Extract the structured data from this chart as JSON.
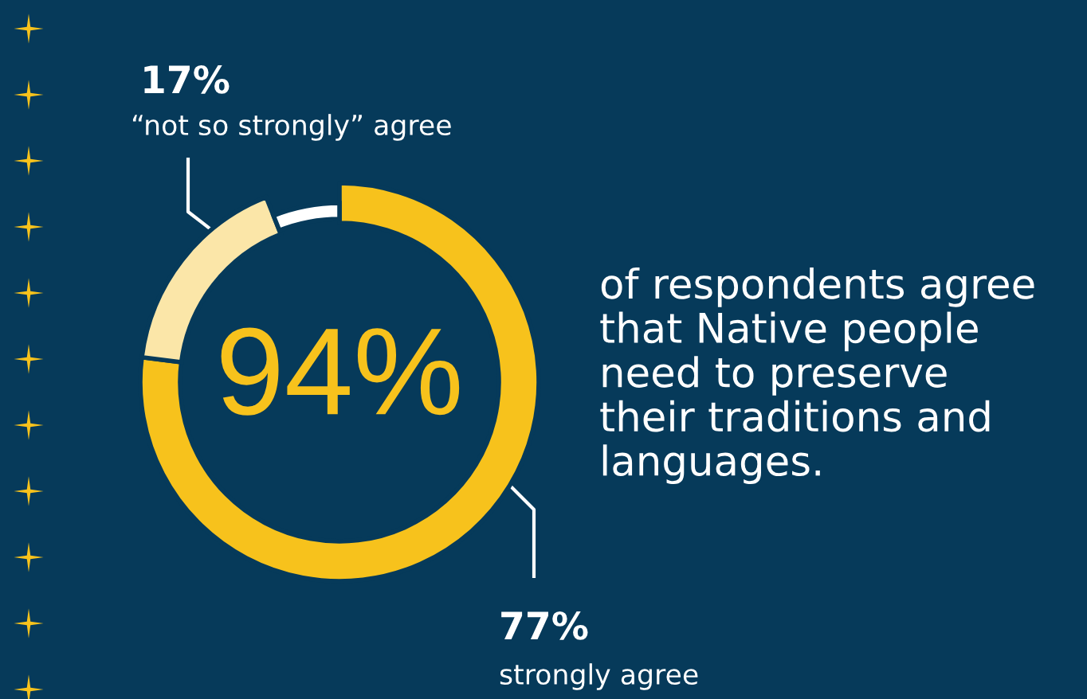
{
  "chart_data": {
    "type": "donut",
    "categories": [
      "strongly agree",
      "“not so strongly” agree",
      null
    ],
    "values": [
      77,
      17,
      6
    ],
    "colors": [
      "#f7c21c",
      "#fbe6a8",
      "#ffffff"
    ],
    "value_labels": [
      "77%",
      "17%",
      null
    ],
    "annotations": [
      "94%",
      "of respondents agree\nthat Native people\nneed to preserve\ntheir traditions and\nlanguages."
    ]
  }
}
